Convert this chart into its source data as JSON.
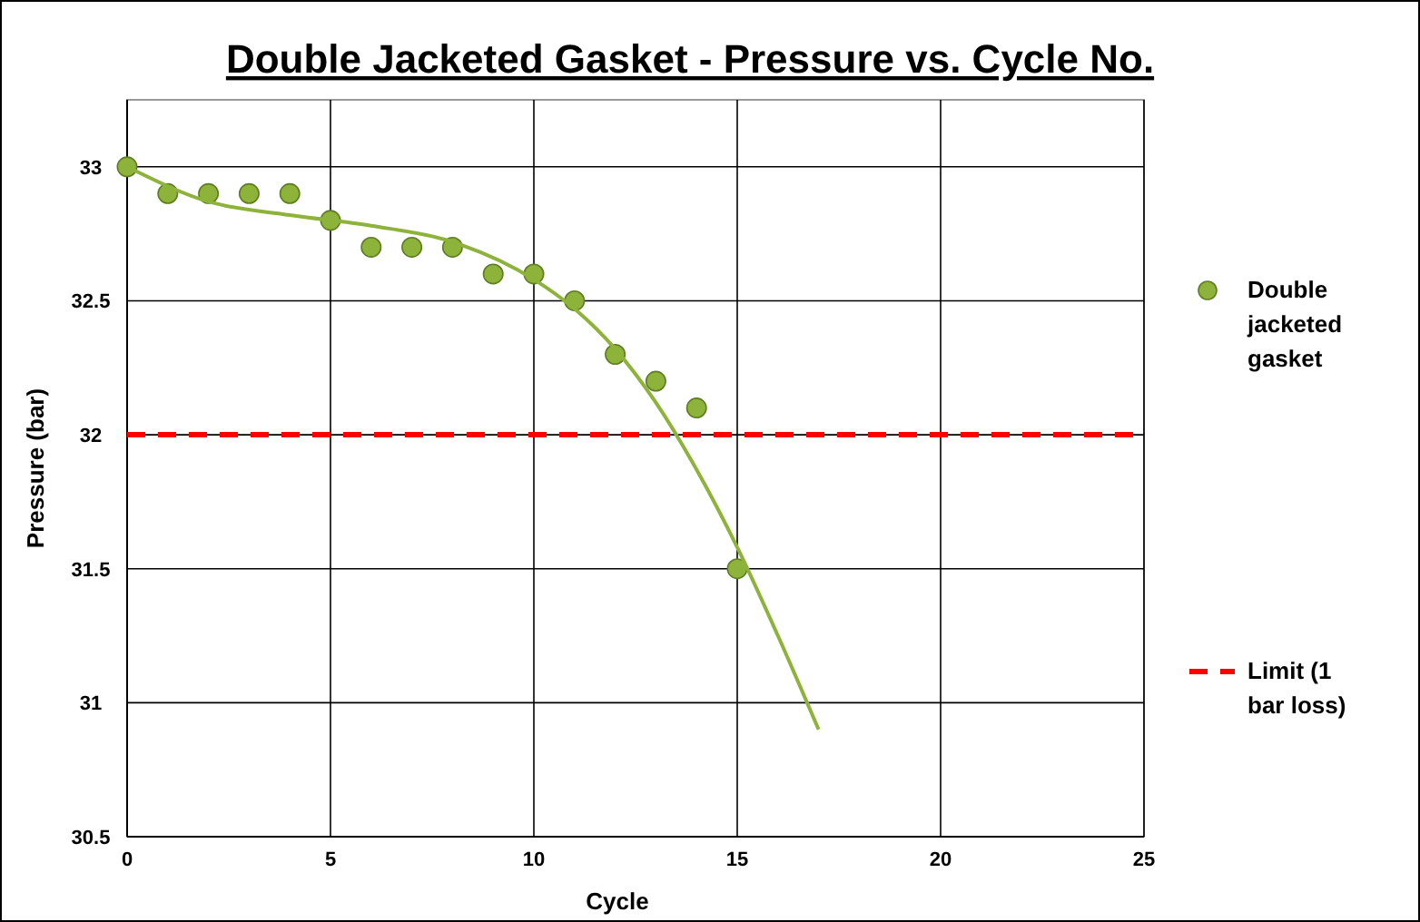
{
  "chart_data": {
    "type": "scatter",
    "title": "Double Jacketed Gasket - Pressure vs. Cycle No.",
    "xlabel": "Cycle",
    "ylabel": "Pressure (bar)",
    "xlim": [
      0,
      25
    ],
    "xticks": [
      0,
      5,
      10,
      15,
      20,
      25
    ],
    "ylim": [
      30.5,
      33.25
    ],
    "yticks": [
      30.5,
      31,
      31.5,
      32,
      32.5,
      33
    ],
    "grid": true,
    "legend": "right",
    "series": [
      {
        "name": "Double jacketed gasket",
        "color": "#8db33a",
        "marker": "circle",
        "x": [
          0,
          1,
          2,
          3,
          4,
          5,
          6,
          7,
          8,
          9,
          10,
          11,
          12,
          13,
          14,
          15
        ],
        "values": [
          33,
          32.9,
          32.9,
          32.9,
          32.9,
          32.8,
          32.7,
          32.7,
          32.7,
          32.6,
          32.6,
          32.5,
          32.3,
          32.2,
          32.1,
          31.5
        ]
      },
      {
        "type": "line",
        "color": "#8db33a",
        "x": [
          0,
          2,
          4,
          6,
          8,
          10,
          11,
          12,
          13,
          14,
          15,
          16,
          17
        ],
        "values": [
          33,
          32.87,
          32.82,
          32.78,
          32.72,
          32.58,
          32.47,
          32.32,
          32.12,
          31.87,
          31.58,
          31.25,
          30.9
        ]
      }
    ],
    "ref_lines": [
      {
        "axis": "y",
        "value": 32,
        "label": "Limit (1 bar loss)",
        "color": "#ff0000",
        "line_style": "dashed"
      }
    ]
  }
}
